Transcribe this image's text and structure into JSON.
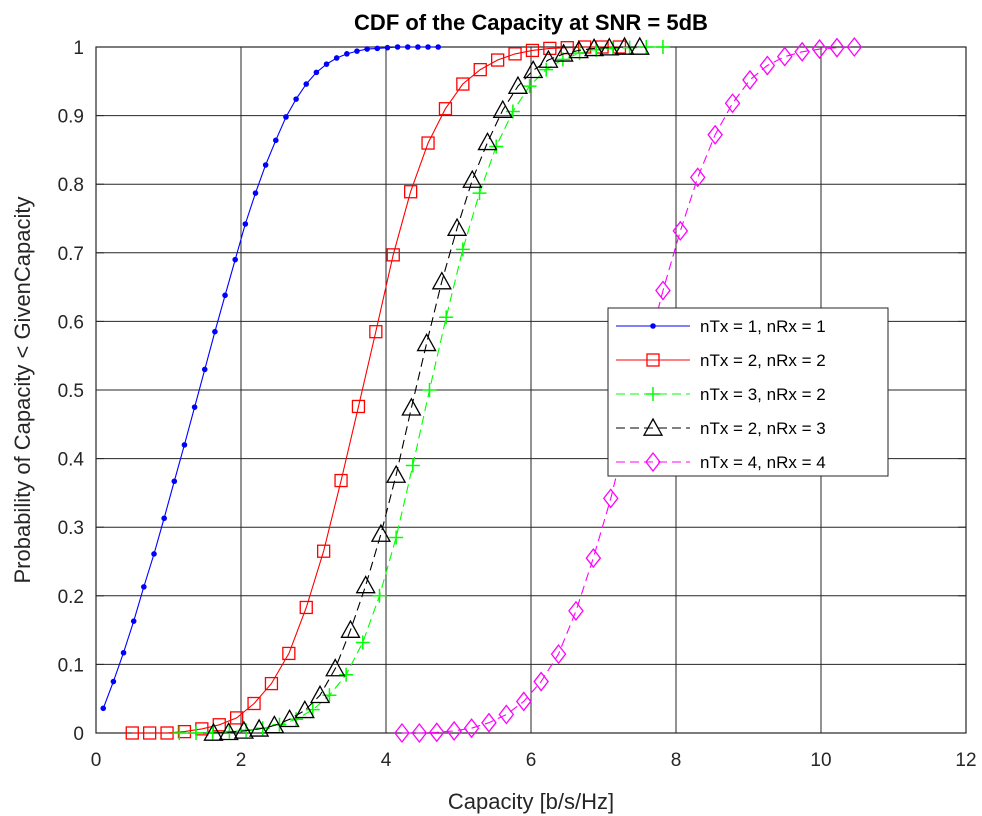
{
  "chart_data": {
    "type": "line",
    "title": "CDF of the Capacity at SNR = 5dB",
    "xlabel": "Capacity [b/s/Hz]",
    "ylabel": "Probability of Capacity < GivenCapacity",
    "xlim": [
      0,
      12
    ],
    "ylim": [
      0,
      1
    ],
    "x_ticks": [
      "0",
      "2",
      "4",
      "6",
      "8",
      "10",
      "12"
    ],
    "y_ticks": [
      "0",
      "0.1",
      "0.2",
      "0.3",
      "0.4",
      "0.5",
      "0.6",
      "0.7",
      "0.8",
      "0.9",
      "1"
    ],
    "grid": true,
    "legend_position": "center-right",
    "series": [
      {
        "name": "nTx = 1, nRx = 1",
        "color": "#0000FF",
        "marker": "dot",
        "line_style": "solid",
        "x": [
          0.1,
          0.24,
          0.38,
          0.52,
          0.66,
          0.8,
          0.94,
          1.08,
          1.22,
          1.36,
          1.5,
          1.64,
          1.78,
          1.92,
          2.06,
          2.2,
          2.34,
          2.48,
          2.62,
          2.76,
          2.9,
          3.04,
          3.18,
          3.32,
          3.46,
          3.6,
          3.74,
          3.88,
          4.02,
          4.16,
          4.3,
          4.44,
          4.58,
          4.72
        ],
        "y": [
          0.036,
          0.075,
          0.117,
          0.163,
          0.213,
          0.261,
          0.313,
          0.367,
          0.42,
          0.475,
          0.53,
          0.585,
          0.638,
          0.69,
          0.742,
          0.787,
          0.828,
          0.864,
          0.898,
          0.924,
          0.946,
          0.963,
          0.975,
          0.984,
          0.99,
          0.994,
          0.997,
          0.998,
          0.999,
          1.0,
          1.0,
          1.0,
          1.0,
          1.0
        ]
      },
      {
        "name": "nTx = 2, nRx = 2",
        "color": "#FF0000",
        "marker": "square",
        "line_style": "solid",
        "x": [
          0.5,
          0.74,
          0.98,
          1.22,
          1.46,
          1.7,
          1.94,
          2.18,
          2.42,
          2.66,
          2.9,
          3.14,
          3.38,
          3.62,
          3.86,
          4.1,
          4.34,
          4.58,
          4.82,
          5.06,
          5.3,
          5.54,
          5.78,
          6.02,
          6.26,
          6.5,
          6.74,
          6.98,
          7.22
        ],
        "y": [
          0.0,
          0.0,
          0.0,
          0.002,
          0.006,
          0.012,
          0.022,
          0.043,
          0.072,
          0.116,
          0.183,
          0.265,
          0.368,
          0.476,
          0.585,
          0.697,
          0.789,
          0.86,
          0.91,
          0.946,
          0.967,
          0.981,
          0.99,
          0.995,
          0.998,
          0.999,
          1.0,
          1.0,
          1.0
        ]
      },
      {
        "name": "nTx = 3, nRx = 2",
        "color": "#00FF00",
        "marker": "plus",
        "line_style": "dashed",
        "x": [
          1.15,
          1.38,
          1.61,
          1.84,
          2.07,
          2.3,
          2.53,
          2.76,
          2.99,
          3.22,
          3.45,
          3.68,
          3.91,
          4.14,
          4.37,
          4.6,
          4.83,
          5.06,
          5.29,
          5.52,
          5.75,
          5.98,
          6.21,
          6.44,
          6.67,
          6.9,
          7.13,
          7.36,
          7.59,
          7.82
        ],
        "y": [
          0.0,
          0.0,
          0.001,
          0.002,
          0.004,
          0.007,
          0.012,
          0.02,
          0.034,
          0.055,
          0.085,
          0.132,
          0.2,
          0.285,
          0.39,
          0.5,
          0.606,
          0.705,
          0.787,
          0.855,
          0.906,
          0.943,
          0.967,
          0.982,
          0.991,
          0.996,
          0.998,
          0.999,
          1.0,
          1.0
        ]
      },
      {
        "name": "nTx = 2, nRx = 3",
        "color": "#000000",
        "marker": "triangle",
        "line_style": "dashed",
        "x": [
          1.62,
          1.83,
          2.04,
          2.25,
          2.46,
          2.67,
          2.88,
          3.09,
          3.3,
          3.51,
          3.72,
          3.93,
          4.14,
          4.35,
          4.56,
          4.77,
          4.98,
          5.19,
          5.4,
          5.61,
          5.82,
          6.03,
          6.24,
          6.45,
          6.66,
          6.87,
          7.08,
          7.29,
          7.5
        ],
        "y": [
          0.0,
          0.001,
          0.003,
          0.006,
          0.011,
          0.02,
          0.033,
          0.055,
          0.094,
          0.15,
          0.215,
          0.29,
          0.376,
          0.474,
          0.568,
          0.658,
          0.736,
          0.806,
          0.861,
          0.908,
          0.943,
          0.966,
          0.981,
          0.99,
          0.995,
          0.998,
          0.999,
          1.0,
          1.0
        ]
      },
      {
        "name": "nTx = 4, nRx = 4",
        "color": "#FF00FF",
        "marker": "diamond",
        "line_style": "dashed",
        "x": [
          4.22,
          4.46,
          4.7,
          4.94,
          5.18,
          5.42,
          5.66,
          5.9,
          6.14,
          6.38,
          6.62,
          6.86,
          7.1,
          7.34,
          7.58,
          7.82,
          8.06,
          8.3,
          8.54,
          8.78,
          9.02,
          9.26,
          9.5,
          9.74,
          9.98,
          10.22,
          10.46
        ],
        "y": [
          0.0,
          0.0,
          0.001,
          0.003,
          0.007,
          0.015,
          0.027,
          0.046,
          0.075,
          0.115,
          0.178,
          0.255,
          0.342,
          0.445,
          0.547,
          0.645,
          0.732,
          0.81,
          0.872,
          0.918,
          0.952,
          0.973,
          0.986,
          0.993,
          0.997,
          0.999,
          1.0
        ]
      }
    ]
  }
}
